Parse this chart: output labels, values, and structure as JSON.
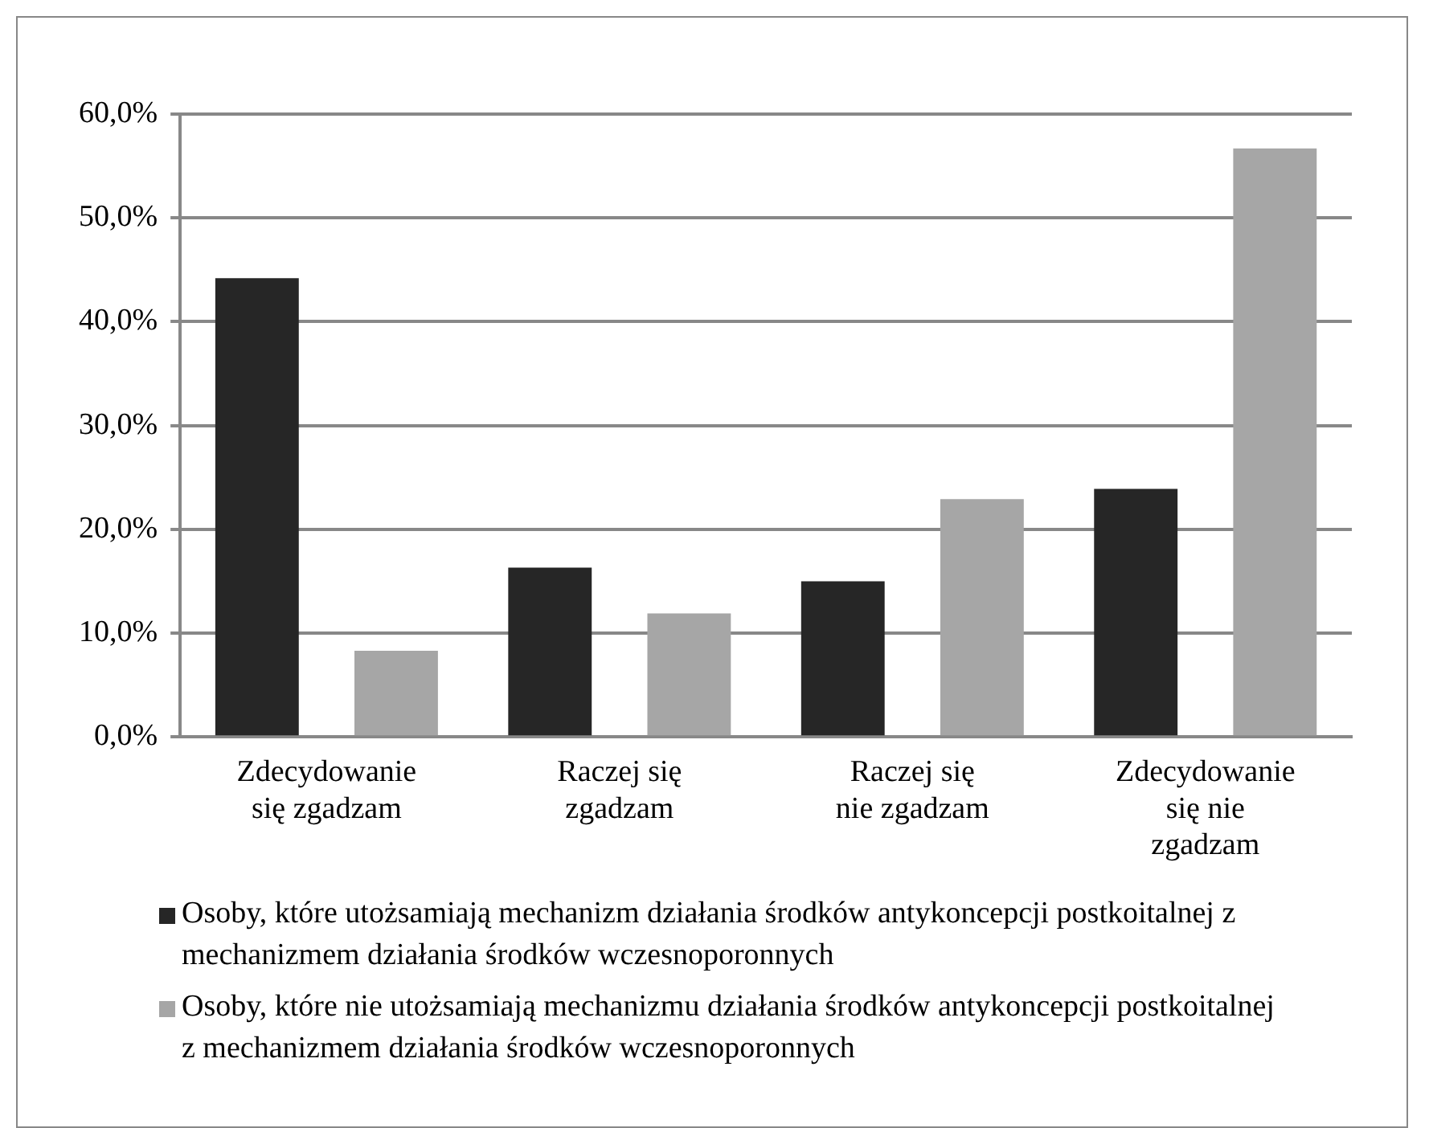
{
  "chart_data": {
    "type": "bar",
    "categories": [
      "Zdecydowanie się zgadzam",
      "Raczej się zgadzam",
      "Raczej się nie zgadzam",
      "Zdecydowanie się nie zgadzam"
    ],
    "series": [
      {
        "name": "Osoby, które utożsamiają mechanizm działania środków antykoncepcji postkoitalnej z mechanizmem działania środków wczesnoporonnych",
        "color": "#262626",
        "values": [
          44.2,
          16.3,
          15.0,
          23.9
        ]
      },
      {
        "name": "Osoby, które nie utożsamiają mechanizmu działania środków antykoncepcji postkoitalnej z mechanizmem działania środków wczesnoporonnych",
        "color": "#a6a6a6",
        "values": [
          8.3,
          11.9,
          22.9,
          56.7
        ]
      }
    ],
    "ylim": [
      0,
      60
    ],
    "yticks": [
      {
        "value": 0,
        "label": "0,0%"
      },
      {
        "value": 10,
        "label": "10,0%"
      },
      {
        "value": 20,
        "label": "20,0%"
      },
      {
        "value": 30,
        "label": "30,0%"
      },
      {
        "value": 40,
        "label": "40,0%"
      },
      {
        "value": 50,
        "label": "50,0%"
      },
      {
        "value": 60,
        "label": "60,0%"
      }
    ],
    "grid": "y",
    "legend": "bottom"
  }
}
